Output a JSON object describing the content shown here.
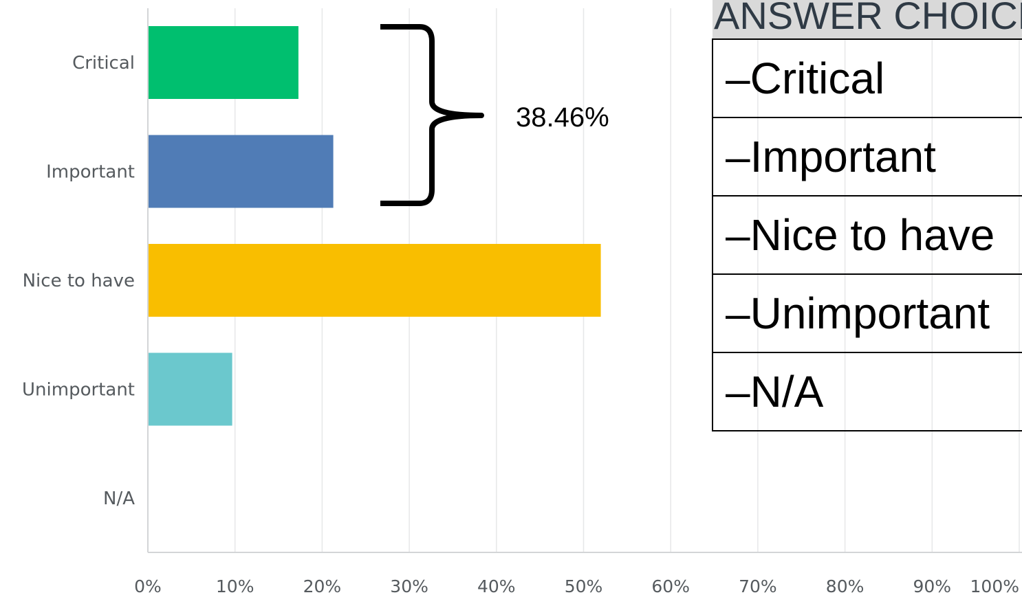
{
  "chart_data": {
    "type": "bar",
    "orientation": "horizontal",
    "categories": [
      "Critical",
      "Important",
      "Nice to have",
      "Unimportant",
      "N/A"
    ],
    "values": [
      17.2,
      21.2,
      51.9,
      9.6,
      0
    ],
    "colors": [
      "#00bf6f",
      "#507cb6",
      "#f9be00",
      "#6bc8cd",
      "#cccccc"
    ],
    "xlim": [
      0,
      100
    ],
    "xticks": [
      "0%",
      "10%",
      "20%",
      "30%",
      "40%",
      "50%",
      "60%",
      "70%",
      "80%",
      "90%",
      "100%"
    ],
    "grid": true,
    "annotation": {
      "text": "38.46%",
      "covers": [
        "Critical",
        "Important"
      ]
    }
  },
  "table": {
    "header": "ANSWER CHOICES",
    "rows": [
      "–Critical",
      "–Important",
      "–Nice to have",
      "–Unimportant",
      "–N/A"
    ]
  }
}
